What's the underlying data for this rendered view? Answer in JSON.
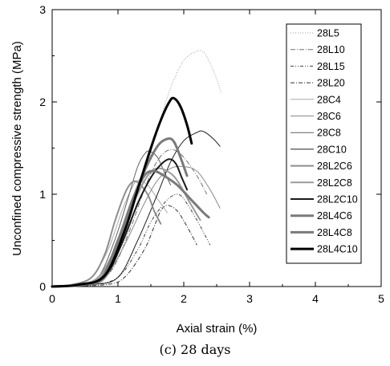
{
  "caption": "(c) 28 days",
  "chart_data": {
    "type": "line",
    "xlabel": "Axial strain (%)",
    "ylabel": "Unconfined compressive strength (MPa)",
    "xlim": [
      0,
      5
    ],
    "ylim": [
      0,
      3
    ],
    "xticks": [
      "0",
      "1",
      "2",
      "3",
      "4",
      "5"
    ],
    "yticks": [
      "0",
      "1",
      "2",
      "3"
    ],
    "grid": false,
    "legend_position": "top-right",
    "series": [
      {
        "name": "28L5",
        "color": "#9a9a9a",
        "width": 1,
        "dash": "1 2",
        "points": [
          [
            0,
            0
          ],
          [
            0.4,
            0.02
          ],
          [
            0.8,
            0.1
          ],
          [
            1.0,
            0.3
          ],
          [
            1.2,
            0.7
          ],
          [
            1.4,
            1.2
          ],
          [
            1.6,
            1.7
          ],
          [
            1.8,
            2.15
          ],
          [
            2.0,
            2.45
          ],
          [
            2.2,
            2.55
          ],
          [
            2.3,
            2.54
          ],
          [
            2.4,
            2.42
          ],
          [
            2.5,
            2.25
          ],
          [
            2.57,
            2.1
          ]
        ]
      },
      {
        "name": "28L10",
        "color": "#707070",
        "width": 1,
        "dash": "6 2 1 2",
        "points": [
          [
            0,
            0
          ],
          [
            0.5,
            0.02
          ],
          [
            0.8,
            0.1
          ],
          [
            1.0,
            0.3
          ],
          [
            1.2,
            0.65
          ],
          [
            1.4,
            1.05
          ],
          [
            1.55,
            1.3
          ],
          [
            1.7,
            1.45
          ],
          [
            1.85,
            1.48
          ],
          [
            2.0,
            1.4
          ],
          [
            2.2,
            1.2
          ],
          [
            2.35,
            1.0
          ]
        ]
      },
      {
        "name": "28L15",
        "color": "#404040",
        "width": 1,
        "dash": "4 2 1 2 1 2",
        "points": [
          [
            0,
            0
          ],
          [
            0.6,
            0.02
          ],
          [
            1.0,
            0.1
          ],
          [
            1.3,
            0.4
          ],
          [
            1.5,
            0.7
          ],
          [
            1.7,
            0.9
          ],
          [
            1.8,
            0.97
          ],
          [
            1.9,
            1.0
          ],
          [
            2.0,
            0.95
          ],
          [
            2.2,
            0.72
          ],
          [
            2.4,
            0.45
          ]
        ]
      },
      {
        "name": "28L20",
        "color": "#303030",
        "width": 1,
        "dash": "5 2 1 2",
        "points": [
          [
            0,
            0
          ],
          [
            0.8,
            0.02
          ],
          [
            1.1,
            0.1
          ],
          [
            1.4,
            0.4
          ],
          [
            1.55,
            0.65
          ],
          [
            1.65,
            0.82
          ],
          [
            1.75,
            0.88
          ],
          [
            1.9,
            0.82
          ],
          [
            2.05,
            0.65
          ],
          [
            2.2,
            0.45
          ]
        ]
      },
      {
        "name": "28C4",
        "color": "#aaaaaa",
        "width": 1,
        "dash": "",
        "points": [
          [
            0,
            0
          ],
          [
            0.3,
            0.02
          ],
          [
            0.6,
            0.1
          ],
          [
            0.85,
            0.4
          ],
          [
            1.05,
            0.8
          ],
          [
            1.2,
            1.05
          ],
          [
            1.3,
            1.15
          ],
          [
            1.45,
            1.1
          ],
          [
            1.6,
            0.95
          ],
          [
            1.75,
            0.8
          ]
        ]
      },
      {
        "name": "28C6",
        "color": "#8a8a8a",
        "width": 1,
        "dash": "",
        "points": [
          [
            0,
            0
          ],
          [
            0.5,
            0.02
          ],
          [
            0.8,
            0.1
          ],
          [
            1.1,
            0.45
          ],
          [
            1.4,
            0.9
          ],
          [
            1.6,
            1.15
          ],
          [
            1.8,
            1.28
          ],
          [
            2.0,
            1.3
          ],
          [
            2.2,
            1.25
          ],
          [
            2.4,
            1.05
          ],
          [
            2.55,
            0.85
          ]
        ]
      },
      {
        "name": "28C8",
        "color": "#606060",
        "width": 1,
        "dash": "",
        "points": [
          [
            0,
            0
          ],
          [
            0.4,
            0.02
          ],
          [
            0.7,
            0.1
          ],
          [
            0.95,
            0.5
          ],
          [
            1.15,
            0.95
          ],
          [
            1.3,
            1.3
          ],
          [
            1.42,
            1.45
          ],
          [
            1.5,
            1.46
          ],
          [
            1.6,
            1.4
          ],
          [
            1.7,
            1.25
          ],
          [
            1.8,
            1.1
          ]
        ]
      },
      {
        "name": "28C10",
        "color": "#202020",
        "width": 1,
        "dash": "",
        "points": [
          [
            0,
            0
          ],
          [
            0.6,
            0.02
          ],
          [
            1.0,
            0.1
          ],
          [
            1.3,
            0.5
          ],
          [
            1.6,
            1.0
          ],
          [
            1.8,
            1.35
          ],
          [
            2.0,
            1.58
          ],
          [
            2.2,
            1.67
          ],
          [
            2.3,
            1.68
          ],
          [
            2.45,
            1.6
          ],
          [
            2.55,
            1.52
          ]
        ]
      },
      {
        "name": "28L2C6",
        "color": "#8e8e8e",
        "width": 2,
        "dash": "",
        "points": [
          [
            0,
            0
          ],
          [
            0.3,
            0.02
          ],
          [
            0.6,
            0.1
          ],
          [
            0.8,
            0.35
          ],
          [
            0.95,
            0.7
          ],
          [
            1.1,
            1.0
          ],
          [
            1.2,
            1.12
          ],
          [
            1.3,
            1.13
          ],
          [
            1.45,
            1.0
          ],
          [
            1.55,
            0.82
          ],
          [
            1.65,
            0.68
          ]
        ]
      },
      {
        "name": "28L2C8",
        "color": "#9a9a9a",
        "width": 2,
        "dash": "",
        "points": [
          [
            0,
            0
          ],
          [
            0.4,
            0.02
          ],
          [
            0.7,
            0.1
          ],
          [
            0.95,
            0.4
          ],
          [
            1.2,
            0.85
          ],
          [
            1.45,
            1.2
          ],
          [
            1.6,
            1.28
          ],
          [
            1.75,
            1.25
          ],
          [
            1.9,
            1.15
          ],
          [
            2.1,
            0.9
          ],
          [
            2.25,
            0.72
          ]
        ]
      },
      {
        "name": "28L2C10",
        "color": "#1a1a1a",
        "width": 2,
        "dash": "",
        "points": [
          [
            0,
            0
          ],
          [
            0.5,
            0.02
          ],
          [
            0.8,
            0.1
          ],
          [
            1.05,
            0.45
          ],
          [
            1.3,
            0.9
          ],
          [
            1.5,
            1.18
          ],
          [
            1.65,
            1.32
          ],
          [
            1.78,
            1.38
          ],
          [
            1.88,
            1.33
          ],
          [
            1.97,
            1.18
          ],
          [
            2.05,
            1.05
          ]
        ]
      },
      {
        "name": "28L4C6",
        "color": "#7a7a7a",
        "width": 3,
        "dash": "",
        "points": [
          [
            0,
            0
          ],
          [
            0.5,
            0.02
          ],
          [
            0.8,
            0.1
          ],
          [
            1.0,
            0.45
          ],
          [
            1.2,
            0.9
          ],
          [
            1.4,
            1.2
          ],
          [
            1.55,
            1.25
          ],
          [
            1.7,
            1.2
          ],
          [
            1.9,
            1.1
          ],
          [
            2.1,
            0.95
          ],
          [
            2.3,
            0.8
          ],
          [
            2.38,
            0.75
          ]
        ]
      },
      {
        "name": "28L4C8",
        "color": "#7a7a7a",
        "width": 3,
        "dash": "",
        "points": [
          [
            0,
            0
          ],
          [
            0.4,
            0.02
          ],
          [
            0.75,
            0.1
          ],
          [
            1.0,
            0.5
          ],
          [
            1.2,
            0.9
          ],
          [
            1.4,
            1.25
          ],
          [
            1.6,
            1.52
          ],
          [
            1.75,
            1.6
          ],
          [
            1.85,
            1.57
          ],
          [
            1.95,
            1.4
          ],
          [
            2.05,
            1.2
          ]
        ]
      },
      {
        "name": "28L4C10",
        "color": "#000000",
        "width": 3,
        "dash": "",
        "points": [
          [
            0,
            0
          ],
          [
            0.4,
            0.02
          ],
          [
            0.8,
            0.12
          ],
          [
            1.1,
            0.6
          ],
          [
            1.3,
            1.05
          ],
          [
            1.5,
            1.5
          ],
          [
            1.65,
            1.8
          ],
          [
            1.78,
            2.0
          ],
          [
            1.85,
            2.04
          ],
          [
            1.95,
            1.95
          ],
          [
            2.05,
            1.75
          ],
          [
            2.12,
            1.55
          ]
        ]
      }
    ]
  }
}
